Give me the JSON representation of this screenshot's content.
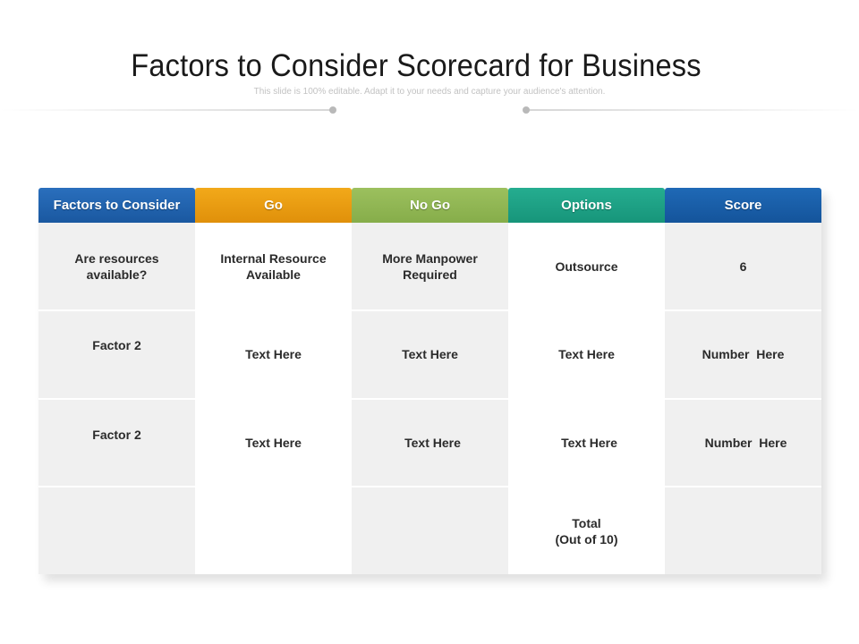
{
  "title": "Factors to Consider Scorecard for Business",
  "subtitle": "This slide is 100% editable. Adapt it to your needs and capture your audience's attention.",
  "colors": {
    "header_factors": "#1e5fa8",
    "header_go": "#e89a12",
    "header_nogo": "#8db352",
    "header_options": "#1fa084",
    "header_score": "#1a5fa8",
    "gray_fill": "#f0f0f0"
  },
  "columns": [
    {
      "label": "Factors to Consider"
    },
    {
      "label": "Go"
    },
    {
      "label": "No Go"
    },
    {
      "label": "Options"
    },
    {
      "label": "Score"
    }
  ],
  "rows": [
    [
      "Are resources available?",
      "Internal Resource Available",
      "More Manpower Required",
      "Outsource",
      "6"
    ],
    [
      "Factor 2",
      "Text Here",
      "Text Here",
      "Text Here",
      "Number  Here"
    ],
    [
      "Factor 2",
      "Text Here",
      "Text Here",
      "Text Here",
      "Number  Here"
    ],
    [
      "",
      "",
      "",
      "Total\n(Out of 10)",
      ""
    ]
  ]
}
